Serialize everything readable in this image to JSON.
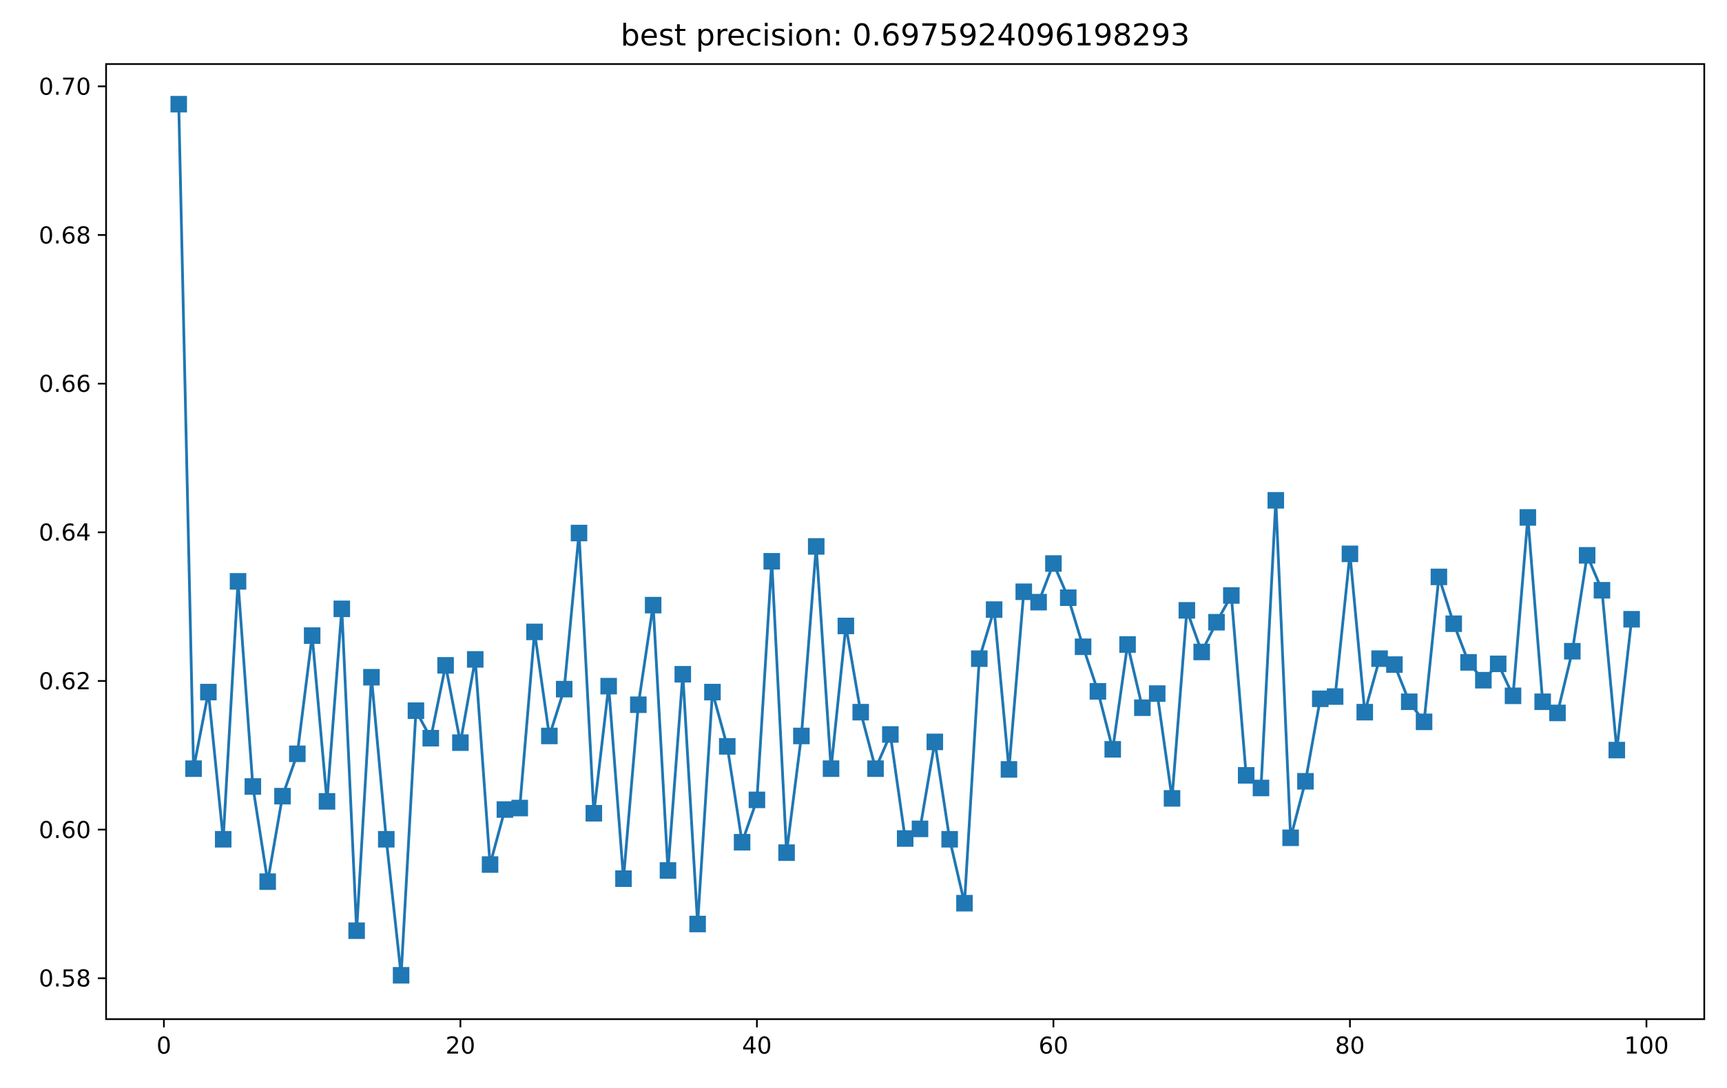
{
  "chart_data": {
    "type": "line",
    "title": "best precision: 0.6975924096198293",
    "xlabel": "",
    "ylabel": "",
    "xlim": [
      -3.9,
      103.9
    ],
    "ylim": [
      0.5745,
      0.703
    ],
    "xticks": [
      0,
      20,
      40,
      60,
      80,
      100
    ],
    "xtick_labels": [
      "0",
      "20",
      "40",
      "60",
      "80",
      "100"
    ],
    "yticks": [
      0.58,
      0.6,
      0.62,
      0.64,
      0.66,
      0.68,
      0.7
    ],
    "ytick_labels": [
      "0.58",
      "0.60",
      "0.62",
      "0.64",
      "0.66",
      "0.68",
      "0.70"
    ],
    "grid": false,
    "series": [
      {
        "color": "#1f77b4",
        "marker": "square",
        "x": [
          1,
          2,
          3,
          4,
          5,
          6,
          7,
          8,
          9,
          10,
          11,
          12,
          13,
          14,
          15,
          16,
          17,
          18,
          19,
          20,
          21,
          22,
          23,
          24,
          25,
          26,
          27,
          28,
          29,
          30,
          31,
          32,
          33,
          34,
          35,
          36,
          37,
          38,
          39,
          40,
          41,
          42,
          43,
          44,
          45,
          46,
          47,
          48,
          49,
          50,
          51,
          52,
          53,
          54,
          55,
          56,
          57,
          58,
          59,
          60,
          61,
          62,
          63,
          64,
          65,
          66,
          67,
          68,
          69,
          70,
          71,
          72,
          73,
          74,
          75,
          76,
          77,
          78,
          79,
          80,
          81,
          82,
          83,
          84,
          85,
          86,
          87,
          88,
          89,
          90,
          91,
          92,
          93,
          94,
          95,
          96,
          97,
          98,
          99
        ],
        "y": [
          0.6976,
          0.6082,
          0.6185,
          0.5987,
          0.6334,
          0.6058,
          0.593,
          0.6045,
          0.6102,
          0.6261,
          0.6038,
          0.6297,
          0.5864,
          0.6205,
          0.5987,
          0.5804,
          0.616,
          0.6123,
          0.6221,
          0.6117,
          0.6229,
          0.5953,
          0.6027,
          0.6029,
          0.6266,
          0.6126,
          0.6189,
          0.6399,
          0.6022,
          0.6193,
          0.5934,
          0.6168,
          0.6302,
          0.5945,
          0.6209,
          0.5873,
          0.6185,
          0.6112,
          0.5983,
          0.604,
          0.6361,
          0.5969,
          0.6126,
          0.6381,
          0.6082,
          0.6274,
          0.6158,
          0.6082,
          0.6128,
          0.5988,
          0.6001,
          0.6118,
          0.5987,
          0.5901,
          0.623,
          0.6296,
          0.6081,
          0.632,
          0.6306,
          0.6358,
          0.6312,
          0.6246,
          0.6186,
          0.6108,
          0.6249,
          0.6164,
          0.6183,
          0.6042,
          0.6295,
          0.6239,
          0.6279,
          0.6315,
          0.6073,
          0.6056,
          0.6443,
          0.5989,
          0.6065,
          0.6176,
          0.6179,
          0.6371,
          0.6158,
          0.623,
          0.6222,
          0.6172,
          0.6145,
          0.634,
          0.6277,
          0.6225,
          0.6201,
          0.6223,
          0.618,
          0.642,
          0.6172,
          0.6157,
          0.624,
          0.6369,
          0.6322,
          0.6107,
          0.6283
        ]
      }
    ]
  }
}
